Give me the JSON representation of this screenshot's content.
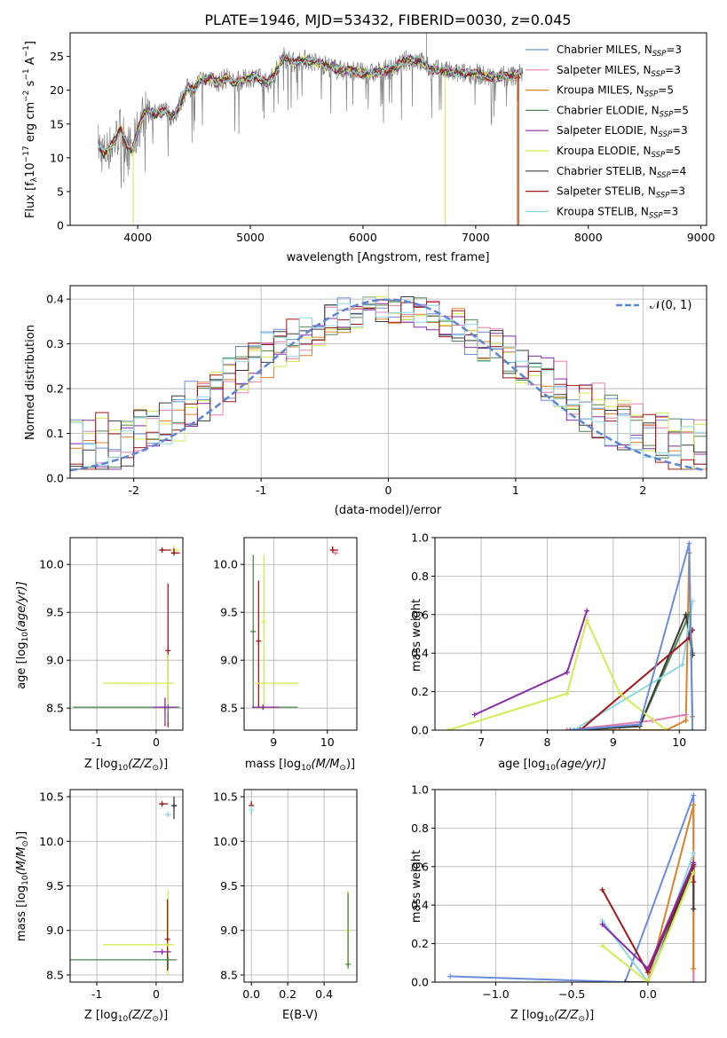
{
  "figure": {
    "title": "PLATE=1946, MJD=53432, FIBERID=0030, z=0.045"
  },
  "legend_entries": [
    {
      "name": "Chabrier MILES",
      "n": "3",
      "color": "#6a8ddb"
    },
    {
      "name": "Salpeter MILES",
      "n": "3",
      "color": "#e57fb0"
    },
    {
      "name": "Kroupa MILES",
      "n": "5",
      "color": "#d9832a"
    },
    {
      "name": "Chabrier ELODIE",
      "n": "5",
      "color": "#4e8a4e"
    },
    {
      "name": "Salpeter ELODIE",
      "n": "3",
      "color": "#8a2aa8"
    },
    {
      "name": "Kroupa ELODIE",
      "n": "5",
      "color": "#d4ea55"
    },
    {
      "name": "Chabrier STELIB",
      "n": "4",
      "color": "#3a3a3a"
    },
    {
      "name": "Salpeter STELIB",
      "n": "3",
      "color": "#a01818"
    },
    {
      "name": "Kroupa STELIB",
      "n": "3",
      "color": "#8ed8e2"
    }
  ],
  "legend_prefix": "N",
  "legend_sub": "SSP",
  "labels": {
    "spec_x": "wavelength [Angstrom, rest frame]",
    "spec_y_main": "Flux [f",
    "spec_y_lambda": "λ",
    "spec_y_mid": "10",
    "spec_y_exp": "−17",
    "spec_y_units": " erg cm",
    "spec_y_exp2": "−2",
    "spec_y_s": " s",
    "spec_y_exp3": "−1",
    "spec_y_end": " A",
    "spec_y_exp4": "−1",
    "spec_y_close": "]",
    "hist_x": "(data-model)/error",
    "hist_y": "Normed distribution",
    "hist_legend": "𝒩(0, 1)",
    "age_y": "age  [log",
    "age_y_sub": "10",
    "age_y_end": "(age/yr)]",
    "mass_y": "mass [log",
    "mass_y_sub": "10",
    "mass_y_end": "(M/M",
    "mass_y_sun": "⊙",
    "mass_y_close": ")]",
    "z_x": "Z [log",
    "z_x_sub": "10",
    "z_x_end": "(Z/Z",
    "z_x_sun": "⊙",
    "z_x_close": ")]",
    "massw_y": "mass weight",
    "ebv_x": "E(B-V)"
  },
  "chart_data": [
    {
      "type": "line",
      "name": "spectrum",
      "xlabel": "wavelength [Angstrom, rest frame]",
      "xlim": [
        3400,
        9050
      ],
      "ylim": [
        0,
        28.5
      ],
      "xticks": [
        4000,
        5000,
        6000,
        7000,
        8000,
        9000
      ],
      "yticks": [
        0,
        5,
        10,
        15,
        20,
        25
      ],
      "continuum": [
        [
          3650,
          12
        ],
        [
          3700,
          10.5
        ],
        [
          3800,
          12.5
        ],
        [
          3850,
          14.5
        ],
        [
          3900,
          12
        ],
        [
          3950,
          11
        ],
        [
          4000,
          14
        ],
        [
          4050,
          16.5
        ],
        [
          4100,
          17
        ],
        [
          4150,
          16.5
        ],
        [
          4200,
          16.5
        ],
        [
          4250,
          17
        ],
        [
          4300,
          16
        ],
        [
          4350,
          17
        ],
        [
          4400,
          19
        ],
        [
          4450,
          20.5
        ],
        [
          4500,
          20
        ],
        [
          4550,
          21.5
        ],
        [
          4600,
          21.5
        ],
        [
          4650,
          22
        ],
        [
          4700,
          21
        ],
        [
          4750,
          21.5
        ],
        [
          4800,
          22
        ],
        [
          4850,
          21
        ],
        [
          4900,
          21.5
        ],
        [
          4950,
          21.5
        ],
        [
          5000,
          22
        ],
        [
          5050,
          22
        ],
        [
          5100,
          21.5
        ],
        [
          5150,
          21
        ],
        [
          5200,
          22
        ],
        [
          5250,
          23.5
        ],
        [
          5300,
          25
        ],
        [
          5350,
          24.5
        ],
        [
          5400,
          24
        ],
        [
          5450,
          24.5
        ],
        [
          5500,
          24.5
        ],
        [
          5600,
          24
        ],
        [
          5700,
          23.5
        ],
        [
          5800,
          23
        ],
        [
          5900,
          23
        ],
        [
          6000,
          22.5
        ],
        [
          6100,
          22.5
        ],
        [
          6200,
          23
        ],
        [
          6300,
          23.5
        ],
        [
          6400,
          24.5
        ],
        [
          6500,
          24.5
        ],
        [
          6600,
          23
        ],
        [
          6700,
          23
        ],
        [
          6800,
          22.5
        ],
        [
          6900,
          22.5
        ],
        [
          7000,
          22.5
        ],
        [
          7100,
          22
        ],
        [
          7200,
          22
        ],
        [
          7300,
          22
        ],
        [
          7400,
          22.5
        ]
      ],
      "drops": [
        {
          "x": 3960,
          "color": "#d4ea55"
        },
        {
          "x": 6730,
          "color": "#d4ea55"
        },
        {
          "x": 7370,
          "color": "#d9832a"
        },
        {
          "x": 7380,
          "color": "#a01818"
        }
      ],
      "spikes": [
        {
          "x": 6565,
          "y": 28.5
        }
      ]
    },
    {
      "type": "bar",
      "name": "residual histogram",
      "xlabel": "(data-model)/error",
      "ylabel": "Normed distribution",
      "xlim": [
        -2.5,
        2.5
      ],
      "ylim": [
        0,
        0.43
      ],
      "xticks": [
        -2,
        -1,
        0,
        1,
        2
      ],
      "yticks": [
        0,
        0.1,
        0.2,
        0.3,
        0.4
      ],
      "bin_width": 0.1,
      "bin_start": -2.5,
      "envelope_counts": [
        50
      ],
      "gaussian": {
        "mu": 0,
        "sigma": 1,
        "color": "#5b87d6"
      }
    },
    {
      "type": "scatter",
      "name": "age vs Z",
      "xlim": [
        -1.45,
        0.45
      ],
      "ylim": [
        8.27,
        10.28
      ],
      "xticks": [
        -1,
        0
      ],
      "yticks": [
        8.5,
        9.0,
        9.5,
        10.0
      ],
      "points": [
        {
          "x": 0.3,
          "y": 10.15,
          "xerr": [
            0.05,
            0.1
          ],
          "yerr": [
            0.02,
            0.05
          ],
          "color": "#d4ea55"
        },
        {
          "x": 0.3,
          "y": 10.12,
          "xerr": [
            0.05,
            0.1
          ],
          "yerr": [
            0.02,
            0.05
          ],
          "color": "#a01818"
        },
        {
          "x": 0.1,
          "y": 10.15,
          "xerr": [
            0.05,
            0.15
          ],
          "yerr": [
            0.01,
            0.01
          ],
          "color": "#a01818"
        },
        {
          "x": 0.2,
          "y": 9.1,
          "xerr": [
            0.01,
            0.01
          ],
          "yerr": [
            0.8,
            0.7
          ],
          "color": "#a01818"
        },
        {
          "x": 0.2,
          "y": 8.76,
          "xerr": [
            1.1,
            0.1
          ],
          "yerr": [
            0.3,
            0.3
          ],
          "color": "#d4ea55"
        },
        {
          "x": 0.2,
          "y": 8.51,
          "xerr": [
            1.6,
            0.2
          ],
          "yerr": [
            0.15,
            0.01
          ],
          "color": "#4e8a4e"
        },
        {
          "x": 0.15,
          "y": 8.51,
          "xerr": [
            0.2,
            0.2
          ],
          "yerr": [
            0.2,
            0.1
          ],
          "color": "#8a2aa8"
        }
      ],
      "xlabel": "Z [log10(Z/Zsun)]",
      "ylabel": "age [log10(age/yr)]"
    },
    {
      "type": "scatter",
      "name": "age vs mass",
      "xlim": [
        8.45,
        10.55
      ],
      "ylim": [
        8.27,
        10.28
      ],
      "xticks": [
        9,
        10
      ],
      "yticks": [
        8.5,
        9.0,
        9.5,
        10.0
      ],
      "points": [
        {
          "x": 10.1,
          "y": 10.15,
          "xerr": [
            0.05,
            0.1
          ],
          "yerr": [
            0.03,
            0.04
          ],
          "color": "#a01818"
        },
        {
          "x": 10.15,
          "y": 10.12,
          "xerr": [
            0.05,
            0.05
          ],
          "yerr": [
            0.02,
            0.03
          ],
          "color": "#e57fb0"
        },
        {
          "x": 8.62,
          "y": 9.3,
          "xerr": [
            0.01,
            0.01
          ],
          "yerr": [
            0.8,
            0.8
          ],
          "color": "#4e8a4e"
        },
        {
          "x": 8.72,
          "y": 9.2,
          "xerr": [
            0.01,
            0.01
          ],
          "yerr": [
            0.7,
            0.63
          ],
          "color": "#a01818"
        },
        {
          "x": 8.82,
          "y": 9.4,
          "xerr": [
            0.01,
            0.01
          ],
          "yerr": [
            0.9,
            0.7
          ],
          "color": "#d4ea55"
        },
        {
          "x": 8.82,
          "y": 8.76,
          "xerr": [
            0.2,
            0.65
          ],
          "yerr": [
            0.01,
            0.01
          ],
          "color": "#d4ea55"
        },
        {
          "x": 8.8,
          "y": 8.51,
          "xerr": [
            0.2,
            0.65
          ],
          "yerr": [
            0.01,
            0.01
          ],
          "color": "#4e8a4e"
        },
        {
          "x": 8.8,
          "y": 8.51,
          "xerr": [
            0.2,
            0.3
          ],
          "yerr": [
            0.01,
            0.01
          ],
          "color": "#8a2aa8"
        }
      ],
      "xlabel": "mass [log10(M/Msun)]"
    },
    {
      "type": "line",
      "name": "mass weight vs age",
      "xlim": [
        6.3,
        10.4
      ],
      "ylim": [
        0,
        1.0
      ],
      "xticks": [
        7,
        8,
        9,
        10
      ],
      "yticks": [
        0.0,
        0.2,
        0.4,
        0.6,
        0.8,
        1.0
      ],
      "xlabel": "age [log10(age/yr)]",
      "ylabel": "mass weight",
      "series": [
        {
          "color": "#d9832a",
          "x": [
            8.3,
            9.1,
            9.8,
            10.1,
            10.15,
            10.2
          ],
          "y": [
            0.0,
            0.0,
            0.0,
            0.05,
            0.92,
            0.07
          ]
        },
        {
          "color": "#e57fb0",
          "x": [
            8.3,
            9.6,
            10.1
          ],
          "y": [
            0.0,
            0.05,
            0.08
          ]
        },
        {
          "color": "#4e8a4e",
          "x": [
            8.4,
            9.4,
            10.15,
            10.2
          ],
          "y": [
            0.0,
            0.02,
            0.6,
            0.4
          ]
        },
        {
          "color": "#3a3a3a",
          "x": [
            8.4,
            9.4,
            10.1,
            10.2
          ],
          "y": [
            0.0,
            0.02,
            0.6,
            0.39
          ]
        },
        {
          "color": "#8ed8e2",
          "x": [
            8.4,
            10.05,
            10.2
          ],
          "y": [
            0.0,
            0.34,
            0.67
          ]
        },
        {
          "color": "#a01818",
          "x": [
            8.5,
            10.15,
            10.2
          ],
          "y": [
            0.0,
            0.48,
            0.52
          ]
        },
        {
          "color": "#d4ea55",
          "x": [
            6.5,
            8.3,
            8.6,
            9.1,
            9.8
          ],
          "y": [
            0.0,
            0.19,
            0.57,
            0.19,
            0.0
          ]
        },
        {
          "color": "#8a2aa8",
          "x": [
            6.9,
            8.3,
            8.6
          ],
          "y": [
            0.08,
            0.3,
            0.62
          ]
        },
        {
          "color": "#6a8ddb",
          "x": [
            8.35,
            9.4,
            10.15,
            10.2
          ],
          "y": [
            0.0,
            0.03,
            0.97,
            0.0
          ]
        }
      ]
    },
    {
      "type": "scatter",
      "name": "mass vs Z",
      "xlim": [
        -1.45,
        0.45
      ],
      "ylim": [
        8.42,
        10.58
      ],
      "xticks": [
        -1,
        0
      ],
      "yticks": [
        8.5,
        9.0,
        9.5,
        10.0,
        10.5
      ],
      "xlabel": "Z [log10(Z/Zsun)]",
      "ylabel": "mass [log10(M/Msun)]",
      "points": [
        {
          "x": 0.1,
          "y": 10.42,
          "xerr": [
            0.05,
            0.1
          ],
          "yerr": [
            0.01,
            0.01
          ],
          "color": "#a01818"
        },
        {
          "x": 0.2,
          "y": 10.3,
          "xerr": [
            0.05,
            0.05
          ],
          "yerr": [
            0.02,
            0.02
          ],
          "color": "#8ed8e2"
        },
        {
          "x": 0.3,
          "y": 10.4,
          "xerr": [
            0.02,
            0.05
          ],
          "yerr": [
            0.15,
            0.1
          ],
          "color": "#3a3a3a"
        },
        {
          "x": 0.2,
          "y": 9.0,
          "xerr": [
            0.01,
            0.01
          ],
          "yerr": [
            0.5,
            0.45
          ],
          "color": "#d4ea55"
        },
        {
          "x": 0.19,
          "y": 8.9,
          "xerr": [
            0.01,
            0.01
          ],
          "yerr": [
            0.35,
            0.45
          ],
          "color": "#a01818"
        },
        {
          "x": 0.2,
          "y": 8.84,
          "xerr": [
            1.1,
            0.1
          ],
          "yerr": [
            0.01,
            0.01
          ],
          "color": "#d4ea55"
        },
        {
          "x": 0.1,
          "y": 8.76,
          "xerr": [
            0.15,
            0.15
          ],
          "yerr": [
            0.01,
            0.01
          ],
          "color": "#8a2aa8"
        },
        {
          "x": 0.2,
          "y": 8.67,
          "xerr": [
            1.65,
            0.15
          ],
          "yerr": [
            0.1,
            0.01
          ],
          "color": "#4e8a4e"
        }
      ]
    },
    {
      "type": "scatter",
      "name": "mass vs E(B-V)",
      "xlim": [
        -0.04,
        0.58
      ],
      "ylim": [
        8.42,
        10.58
      ],
      "xticks": [
        0.0,
        0.2,
        0.4
      ],
      "yticks": [
        8.5,
        9.0,
        9.5,
        10.0,
        10.5
      ],
      "xlabel": "E(B-V)",
      "points": [
        {
          "x": 0.0,
          "y": 10.4,
          "xerr": [
            0.002,
            0.002
          ],
          "yerr": [
            0.1,
            0.05
          ],
          "color": "#a01818"
        },
        {
          "x": 0.0,
          "y": 10.35,
          "xerr": [
            0.002,
            0.002
          ],
          "yerr": [
            0.05,
            0.05
          ],
          "color": "#8ed8e2"
        },
        {
          "x": 0.53,
          "y": 9.0,
          "xerr": [
            0.002,
            0.002
          ],
          "yerr": [
            0.4,
            0.45
          ],
          "color": "#d4ea55"
        },
        {
          "x": 0.532,
          "y": 8.62,
          "xerr": [
            0.002,
            0.002
          ],
          "yerr": [
            0.05,
            0.8
          ],
          "color": "#4e8a4e"
        }
      ]
    },
    {
      "type": "line",
      "name": "mass weight vs Z",
      "xlim": [
        -1.4,
        0.38
      ],
      "ylim": [
        0,
        1.0
      ],
      "xticks": [
        -1.0,
        -0.5,
        0.0
      ],
      "yticks": [
        0.0,
        0.2,
        0.4,
        0.6,
        0.8,
        1.0
      ],
      "xlabel": "Z [log10(Z/Zsun)]",
      "ylabel": "mass weight",
      "series": [
        {
          "color": "#6a8ddb",
          "x": [
            -1.3,
            -0.15,
            0.3,
            0.3
          ],
          "y": [
            0.03,
            0.0,
            0.97,
            0.0
          ]
        },
        {
          "color": "#e57fb0",
          "x": [
            0.0,
            0.3,
            0.3
          ],
          "y": [
            0.0,
            0.6,
            0.0
          ]
        },
        {
          "color": "#d9832a",
          "x": [
            0.0,
            0.3,
            0.3
          ],
          "y": [
            0.0,
            0.92,
            0.07
          ]
        },
        {
          "color": "#4e8a4e",
          "x": [
            0.0,
            0.3
          ],
          "y": [
            0.0,
            0.6
          ]
        },
        {
          "color": "#3a3a3a",
          "x": [
            -0.15,
            0.0,
            0.3,
            0.3
          ],
          "y": [
            0.0,
            0.0,
            0.61,
            0.38
          ]
        },
        {
          "color": "#8ed8e2",
          "x": [
            -0.3,
            0.0,
            0.3
          ],
          "y": [
            0.32,
            0.0,
            0.67
          ]
        },
        {
          "color": "#a01818",
          "x": [
            -0.3,
            0.0,
            0.3,
            0.3
          ],
          "y": [
            0.48,
            0.05,
            0.61,
            0.52
          ]
        },
        {
          "color": "#d4ea55",
          "x": [
            -0.3,
            0.0,
            0.3
          ],
          "y": [
            0.19,
            0.0,
            0.57
          ]
        },
        {
          "color": "#8a2aa8",
          "x": [
            -0.3,
            0.0,
            0.3
          ],
          "y": [
            0.3,
            0.07,
            0.62
          ]
        }
      ]
    }
  ]
}
